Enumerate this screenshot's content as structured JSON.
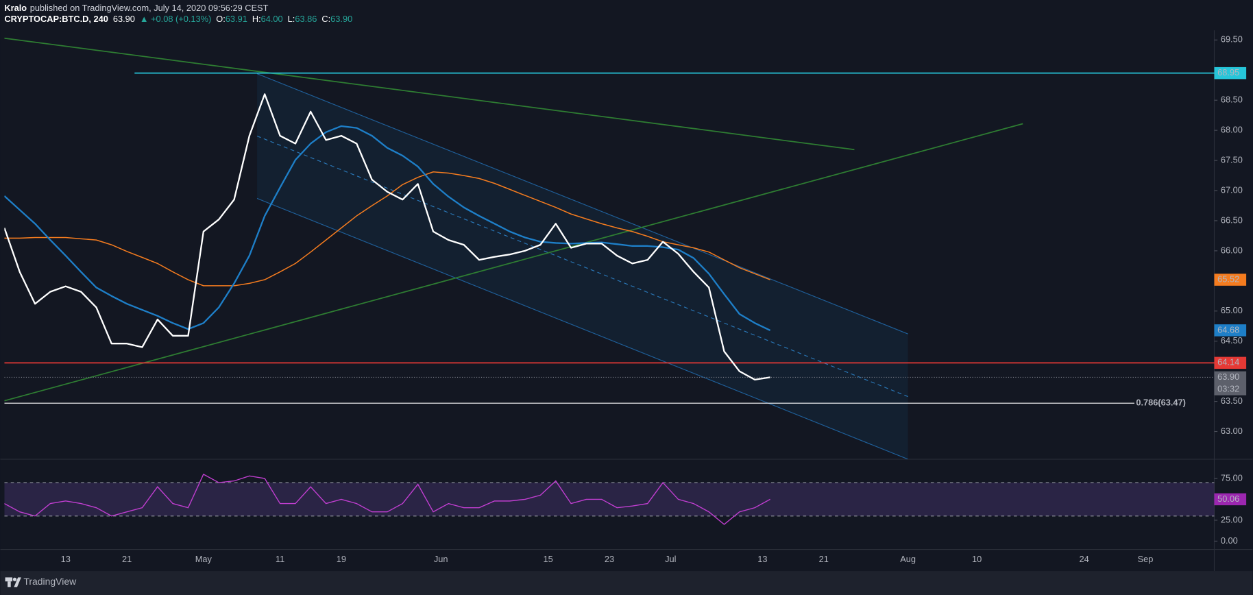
{
  "chart_data": {
    "type": "line",
    "author": "Kralo",
    "title": "published on TradingView.com, July 14, 2020 09:56:29 CEST",
    "symbol": "CRYPTOCAP:BTC.D, 240",
    "quote": {
      "last": "63.90",
      "change": "▲ +0.08 (+0.13%)",
      "ohlc": [
        {
          "key": "O:",
          "value": "63.91"
        },
        {
          "key": "H:",
          "value": "64.00"
        },
        {
          "key": "L:",
          "value": "63.86"
        },
        {
          "key": "C:",
          "value": "63.90"
        }
      ]
    },
    "x": [
      "2020-04-05",
      "2020-04-07",
      "2020-04-09",
      "2020-04-11",
      "2020-04-13",
      "2020-04-15",
      "2020-04-17",
      "2020-04-19",
      "2020-04-21",
      "2020-04-23",
      "2020-04-25",
      "2020-04-27",
      "2020-04-29",
      "2020-05-01",
      "2020-05-03",
      "2020-05-05",
      "2020-05-07",
      "2020-05-09",
      "2020-05-11",
      "2020-05-13",
      "2020-05-15",
      "2020-05-17",
      "2020-05-19",
      "2020-05-21",
      "2020-05-23",
      "2020-05-25",
      "2020-05-27",
      "2020-05-29",
      "2020-05-31",
      "2020-06-02",
      "2020-06-04",
      "2020-06-06",
      "2020-06-08",
      "2020-06-10",
      "2020-06-12",
      "2020-06-14",
      "2020-06-16",
      "2020-06-18",
      "2020-06-20",
      "2020-06-22",
      "2020-06-24",
      "2020-06-26",
      "2020-06-28",
      "2020-06-30",
      "2020-07-02",
      "2020-07-04",
      "2020-07-06",
      "2020-07-08",
      "2020-07-10",
      "2020-07-12",
      "2020-07-14"
    ],
    "series": [
      {
        "color": "#ffffff",
        "width": 2,
        "values": [
          66.38,
          65.65,
          65.12,
          65.32,
          65.41,
          65.32,
          65.06,
          64.46,
          64.46,
          64.4,
          64.86,
          64.59,
          64.59,
          66.32,
          66.52,
          66.85,
          67.91,
          68.6,
          67.91,
          67.78,
          68.31,
          67.84,
          67.91,
          67.78,
          67.18,
          66.98,
          66.85,
          67.11,
          66.32,
          66.18,
          66.1,
          65.85,
          65.9,
          65.94,
          66.0,
          66.1,
          66.45,
          66.05,
          66.12,
          66.12,
          65.92,
          65.79,
          65.85,
          66.15,
          65.95,
          65.65,
          65.39,
          64.33,
          64.0,
          63.86,
          63.9
        ]
      },
      {
        "color": "#1e7fc8",
        "width": 2,
        "values": [
          66.91,
          66.68,
          66.45,
          66.18,
          65.92,
          65.65,
          65.39,
          65.25,
          65.12,
          65.02,
          64.92,
          64.8,
          64.7,
          64.8,
          65.06,
          65.46,
          65.92,
          66.58,
          67.05,
          67.51,
          67.78,
          67.97,
          68.07,
          68.04,
          67.91,
          67.71,
          67.58,
          67.4,
          67.11,
          66.9,
          66.72,
          66.58,
          66.45,
          66.32,
          66.22,
          66.15,
          66.13,
          66.12,
          66.13,
          66.14,
          66.11,
          66.08,
          66.08,
          66.06,
          66.02,
          65.88,
          65.62,
          65.28,
          64.95,
          64.8,
          64.68
        ]
      },
      {
        "color": "#f57c1f",
        "width": 1.3,
        "values": [
          66.21,
          66.21,
          66.22,
          66.22,
          66.22,
          66.2,
          66.18,
          66.1,
          65.99,
          65.89,
          65.79,
          65.65,
          65.52,
          65.42,
          65.42,
          65.42,
          65.46,
          65.52,
          65.65,
          65.79,
          65.98,
          66.18,
          66.38,
          66.58,
          66.75,
          66.91,
          67.1,
          67.22,
          67.31,
          67.29,
          67.25,
          67.2,
          67.12,
          67.02,
          66.92,
          66.82,
          66.72,
          66.61,
          66.53,
          66.45,
          66.38,
          66.32,
          66.24,
          66.15,
          66.1,
          66.05,
          65.98,
          65.85,
          65.72,
          65.62,
          65.52
        ]
      }
    ],
    "xlim": [
      "2020-04-05",
      "2020-09-10"
    ],
    "ylim": [
      62.54,
      69.66
    ],
    "xticks": [
      {
        "value": "2020-04-13",
        "label": "13"
      },
      {
        "value": "2020-04-21",
        "label": "21"
      },
      {
        "value": "2020-05-01",
        "label": "May"
      },
      {
        "value": "2020-05-11",
        "label": "11"
      },
      {
        "value": "2020-05-19",
        "label": "19"
      },
      {
        "value": "2020-06-01",
        "label": "Jun"
      },
      {
        "value": "2020-06-15",
        "label": "15"
      },
      {
        "value": "2020-06-23",
        "label": "23"
      },
      {
        "value": "2020-07-01",
        "label": "Jul"
      },
      {
        "value": "2020-07-13",
        "label": "13"
      },
      {
        "value": "2020-07-21",
        "label": "21"
      },
      {
        "value": "2020-08-01",
        "label": "Aug"
      },
      {
        "value": "2020-08-10",
        "label": "10"
      },
      {
        "value": "2020-08-24",
        "label": "24"
      },
      {
        "value": "2020-09-01",
        "label": "Sep"
      }
    ],
    "yticks": [
      {
        "value": 69.5,
        "label": "69.50"
      },
      {
        "value": 68.5,
        "label": "68.50"
      },
      {
        "value": 68,
        "label": "68.00"
      },
      {
        "value": 67.5,
        "label": "67.50"
      },
      {
        "value": 67,
        "label": "67.00"
      },
      {
        "value": 66.5,
        "label": "66.50"
      },
      {
        "value": 66,
        "label": "66.00"
      },
      {
        "value": 65,
        "label": "65.00"
      },
      {
        "value": 64.5,
        "label": "64.50"
      },
      {
        "value": 63.5,
        "label": "63.50"
      },
      {
        "value": 63,
        "label": "63.00"
      }
    ],
    "levels": [
      {
        "value": 68.95,
        "label": "68.95",
        "color": "#26c6da",
        "from": "2020-04-22"
      },
      {
        "value": 64.14,
        "label": "64.14",
        "color": "#e53935",
        "from": "2020-04-05"
      }
    ],
    "fib": {
      "value": 63.47,
      "label": "0.786(63.47)",
      "color": "#ffffff"
    },
    "last_price": {
      "value": 63.9,
      "label": "63.90"
    },
    "countdown": "03:32",
    "trendlines": [
      {
        "color": "#2e7d32",
        "points": [
          [
            "2020-04-05",
            69.53
          ],
          [
            "2020-07-25",
            67.68
          ]
        ]
      },
      {
        "color": "#2e7d32",
        "points": [
          [
            "2020-04-05",
            63.51
          ],
          [
            "2020-08-16",
            68.11
          ]
        ]
      }
    ],
    "channel": {
      "color": "#1f5f99",
      "top": [
        [
          "2020-05-08",
          68.94
        ],
        [
          "2020-08-01",
          64.62
        ]
      ],
      "bottom": [
        [
          "2020-05-08",
          66.87
        ],
        [
          "2020-08-01",
          62.54
        ]
      ]
    },
    "rsi": {
      "color": "#c03ed0",
      "ylim": [
        -10,
        98
      ],
      "bands": [
        70,
        30
      ],
      "yticks": [
        {
          "value": 75,
          "label": "75.00"
        },
        {
          "value": 25,
          "label": "25.00"
        },
        {
          "value": 0,
          "label": "0.00"
        }
      ],
      "values": [
        45,
        35,
        30,
        45,
        48,
        45,
        40,
        30,
        35,
        40,
        65,
        45,
        40,
        80,
        70,
        72,
        78,
        75,
        45,
        45,
        65,
        45,
        50,
        45,
        35,
        35,
        45,
        68,
        35,
        45,
        40,
        40,
        48,
        48,
        50,
        55,
        72,
        45,
        50,
        50,
        40,
        42,
        45,
        70,
        50,
        45,
        35,
        20,
        35,
        40,
        50.06
      ]
    },
    "brand": "TradingView"
  }
}
